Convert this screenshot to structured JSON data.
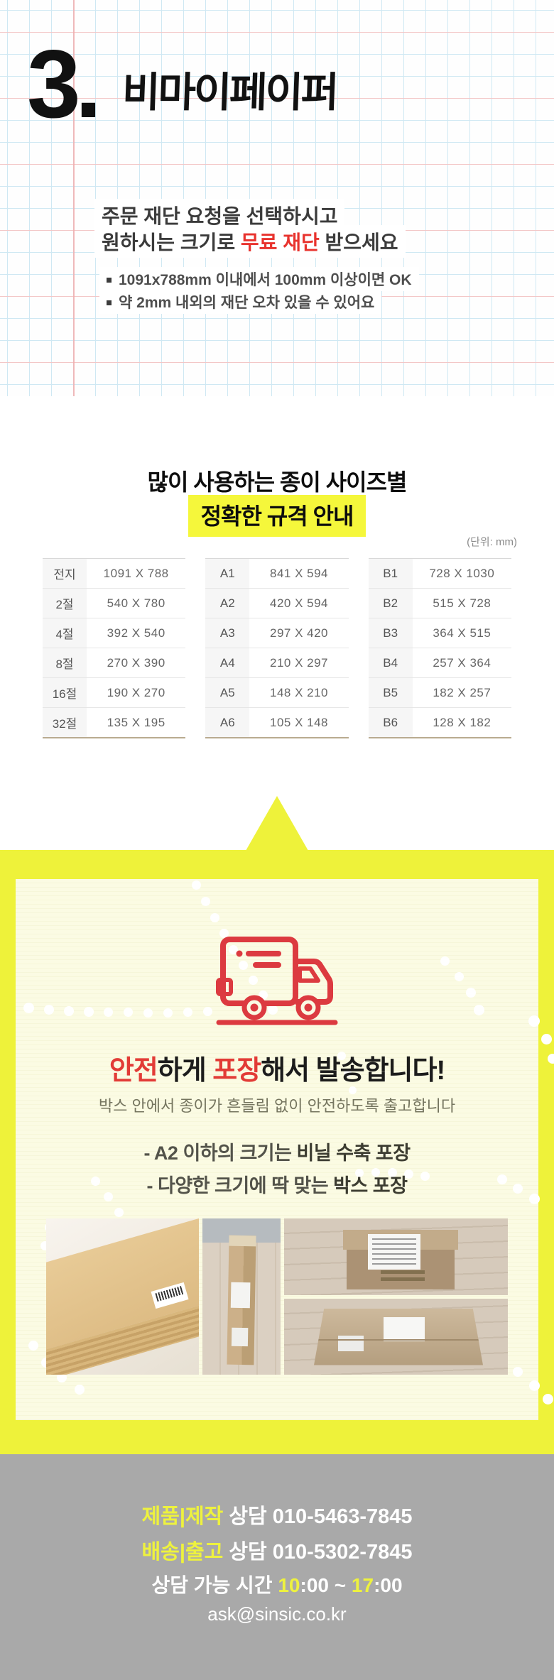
{
  "hero": {
    "number": "3.",
    "title": "비마이페이퍼",
    "line1": "주문 재단 요청을 선택하시고",
    "line2_pre": "원하시는 크기로 ",
    "line2_em": "무료 재단",
    "line2_post": " 받으세요",
    "bullet1": "1091x788mm 이내에서 100mm 이상이면 OK",
    "bullet2": "약 2mm 내외의 재단 오차 있을 수 있어요"
  },
  "size_guide": {
    "heading1": "많이 사용하는 종이 사이즈별",
    "heading2": "정확한 규격 안내",
    "unit": "(단위: mm)",
    "table_k": {
      "rows": [
        [
          "전지",
          "1091 X 788"
        ],
        [
          "2절",
          "540 X 780"
        ],
        [
          "4절",
          "392 X 540"
        ],
        [
          "8절",
          "270 X 390"
        ],
        [
          "16절",
          "190 X 270"
        ],
        [
          "32절",
          "135 X 195"
        ]
      ]
    },
    "table_a": {
      "rows": [
        [
          "A1",
          "841 X 594"
        ],
        [
          "A2",
          "420 X 594"
        ],
        [
          "A3",
          "297 X 420"
        ],
        [
          "A4",
          "210 X 297"
        ],
        [
          "A5",
          "148 X 210"
        ],
        [
          "A6",
          "105 X 148"
        ]
      ]
    },
    "table_b": {
      "rows": [
        [
          "B1",
          "728 X 1030"
        ],
        [
          "B2",
          "515 X 728"
        ],
        [
          "B3",
          "364 X 515"
        ],
        [
          "B4",
          "257 X 364"
        ],
        [
          "B5",
          "182 X 257"
        ],
        [
          "B6",
          "128 X 182"
        ]
      ]
    }
  },
  "packaging": {
    "icon": "delivery-truck-icon",
    "title_em1": "안전",
    "title_t1": "하게 ",
    "title_em2": "포장",
    "title_t2": "해서 발송합니다!",
    "subtitle": "박스 안에서 종이가 흔들림 없이 안전하도록 출고합니다",
    "point1_pre": "- A2 이하의 크기는 ",
    "point1_em": "비닐 수축 포장",
    "point2_pre": "- 다양한 크기에 딱 맞는 ",
    "point2_em": "박스 포장",
    "photos": [
      "paper-stack-photo",
      "tall-box-photo",
      "kraft-box-photo",
      "flat-package-photo"
    ]
  },
  "footer": {
    "line1_em": "제품|제작",
    "line1_rest": " 상담 010-5463-7845",
    "line2_em": "배송|출고",
    "line2_rest": " 상담 010-5302-7845",
    "line3_t1": "상담 가능 시간 ",
    "line3_y1": "10",
    "line3_t2": ":00 ~ ",
    "line3_y2": "17",
    "line3_t3": ":00",
    "email": "ask@sinsic.co.kr"
  },
  "colors": {
    "accent_red": "#e23b36",
    "accent_yellow": "#eef23a",
    "highlight_yellow": "#f5f73b",
    "footer_gray": "#a9a9a9",
    "grid_blue": "#cfe8f3",
    "grid_pink": "#f3c7c7"
  }
}
